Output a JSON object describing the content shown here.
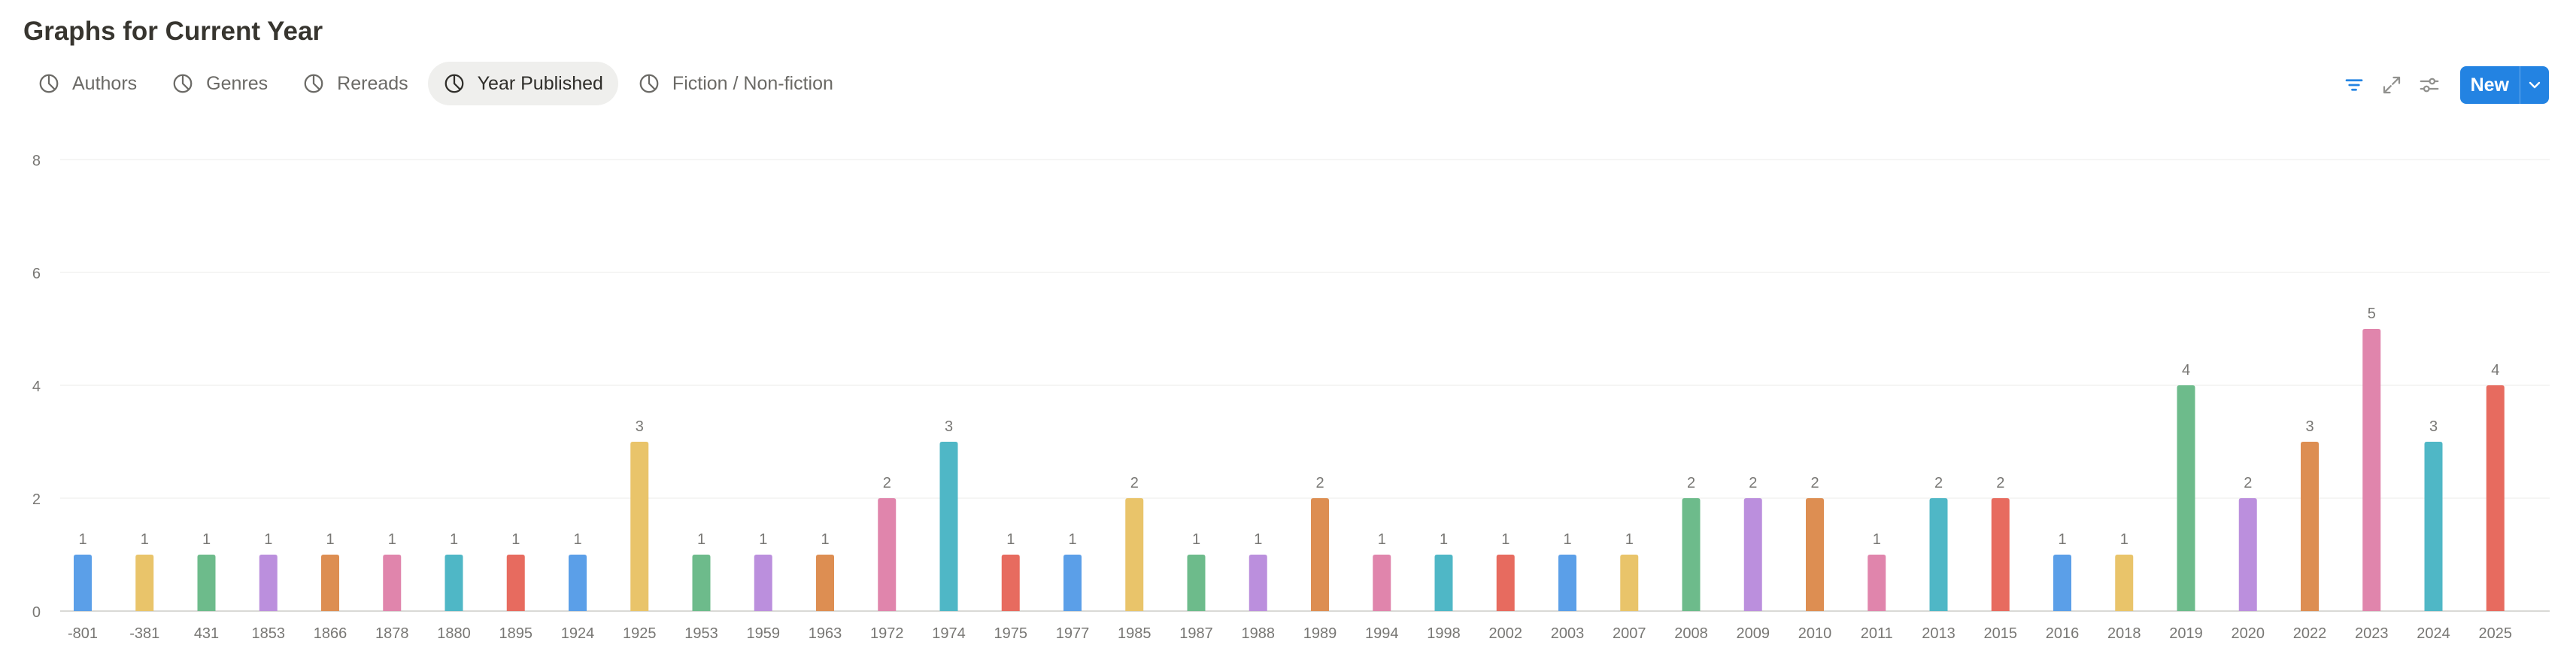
{
  "header": {
    "title": "Graphs for Current Year"
  },
  "tabs": [
    {
      "label": "Authors",
      "icon": "pie-chart-icon",
      "active": false
    },
    {
      "label": "Genres",
      "icon": "pie-chart-icon",
      "active": false
    },
    {
      "label": "Rereads",
      "icon": "pie-chart-icon",
      "active": false
    },
    {
      "label": "Year Published",
      "icon": "pie-chart-icon",
      "active": true
    },
    {
      "label": "Fiction / Non-fiction",
      "icon": "pie-chart-icon",
      "active": false
    }
  ],
  "toolbar": {
    "filter_icon": "filter-icon",
    "expand_icon": "expand-icon",
    "settings_icon": "sliders-icon",
    "new_label": "New",
    "caret_icon": "chevron-down-icon",
    "accent": "#2383e2"
  },
  "chart_data": {
    "type": "bar",
    "title": "",
    "xlabel": "",
    "ylabel": "",
    "ylim": [
      0,
      8
    ],
    "yticks": [
      0,
      2,
      4,
      6,
      8
    ],
    "grid": true,
    "categories": [
      "-801",
      "-381",
      "431",
      "1853",
      "1866",
      "1878",
      "1880",
      "1895",
      "1924",
      "1925",
      "1953",
      "1959",
      "1963",
      "1972",
      "1974",
      "1975",
      "1977",
      "1985",
      "1987",
      "1988",
      "1989",
      "1994",
      "1998",
      "2002",
      "2003",
      "2007",
      "2008",
      "2009",
      "2010",
      "2011",
      "2013",
      "2015",
      "2016",
      "2018",
      "2019",
      "2020",
      "2022",
      "2023",
      "2024",
      "2025"
    ],
    "values": [
      1,
      1,
      1,
      1,
      1,
      1,
      1,
      1,
      1,
      3,
      1,
      1,
      1,
      2,
      3,
      1,
      1,
      2,
      1,
      1,
      2,
      1,
      1,
      1,
      1,
      1,
      2,
      2,
      2,
      1,
      2,
      2,
      1,
      1,
      4,
      2,
      3,
      5,
      3,
      4
    ],
    "palette": [
      "#5b9fe8",
      "#e9c46a",
      "#6dbb8b",
      "#bb8fdd",
      "#dd8e52",
      "#e085ac",
      "#4fb7c6",
      "#e76b5f"
    ]
  }
}
